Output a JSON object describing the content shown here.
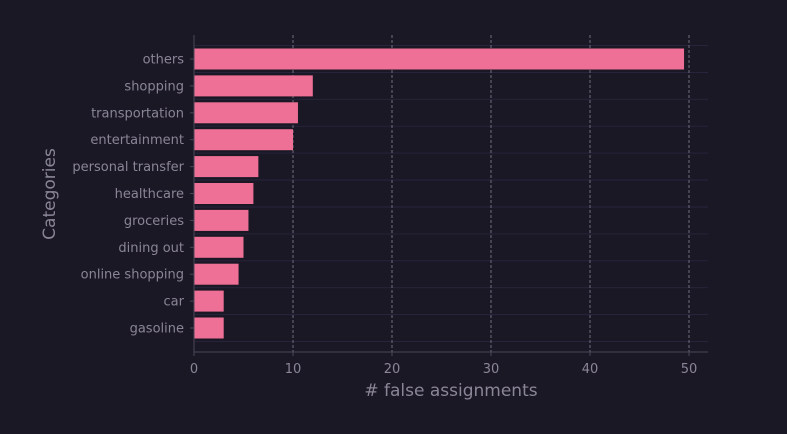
{
  "chart_data": {
    "type": "bar",
    "orientation": "horizontal",
    "categories": [
      "others",
      "shopping",
      "transportation",
      "entertainment",
      "personal transfer",
      "healthcare",
      "groceries",
      "dining out",
      "online shopping",
      "car",
      "gasoline"
    ],
    "values": [
      49.5,
      12,
      10.5,
      10,
      6.5,
      6,
      5.5,
      5,
      4.5,
      3,
      3
    ],
    "title": "",
    "xlabel": "# false assignments",
    "ylabel": "Categories",
    "xlim": [
      0,
      52
    ],
    "xticks": [
      0,
      10,
      20,
      30,
      40,
      50
    ],
    "grid": "x-dashed",
    "colors": {
      "bar": "#ee7096",
      "background": "#1b1826",
      "text": "#8a8597",
      "grid": "#8c8799",
      "row_line": "#26233a",
      "axis": "#4a4657"
    }
  }
}
